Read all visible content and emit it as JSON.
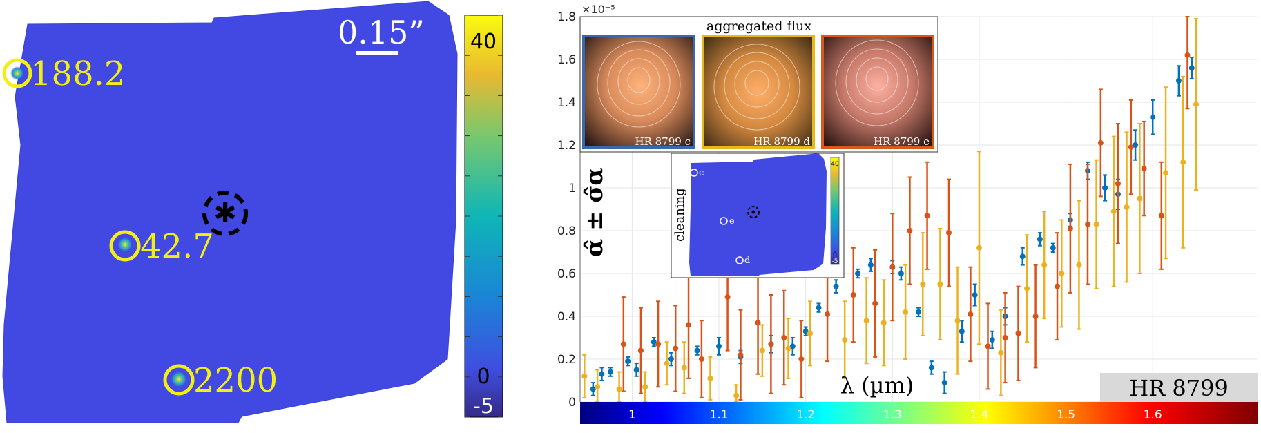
{
  "left_panel": {
    "scale_bar_label": "0.15”",
    "detections": [
      {
        "label": "188.2"
      },
      {
        "label": "42.7"
      },
      {
        "label": "2200"
      }
    ],
    "colorbar": {
      "ticks": [
        {
          "value": 40,
          "label": "40"
        },
        {
          "value": 0,
          "label": "0"
        },
        {
          "value": -5,
          "label": "-5"
        }
      ],
      "min": -5,
      "max": 45
    }
  },
  "chart_data": {
    "type": "scatter",
    "title": "",
    "xlabel": "λ (µm)",
    "ylabel": "α̂ ± σ̂α",
    "y_multiplier": "×10⁻⁵",
    "xlim": [
      0.94,
      1.72
    ],
    "ylim": [
      0,
      1.8
    ],
    "yticks": [
      {
        "value": 0,
        "label": "0"
      },
      {
        "value": 0.2,
        "label": "0.2"
      },
      {
        "value": 0.4,
        "label": "0.4"
      },
      {
        "value": 0.6,
        "label": "0.6"
      },
      {
        "value": 0.8,
        "label": "0.8"
      },
      {
        "value": 1.0,
        "label": "1"
      },
      {
        "value": 1.2,
        "label": "1.2"
      },
      {
        "value": 1.4,
        "label": "1.4"
      },
      {
        "value": 1.6,
        "label": "1.6"
      },
      {
        "value": 1.8,
        "label": "1.8"
      }
    ],
    "wavelength_colorbar_ticks": [
      {
        "value": 1.0,
        "label": "1"
      },
      {
        "value": 1.1,
        "label": "1.1"
      },
      {
        "value": 1.2,
        "label": "1.2"
      },
      {
        "value": 1.3,
        "label": "1.3"
      },
      {
        "value": 1.4,
        "label": "1.4"
      },
      {
        "value": 1.5,
        "label": "1.5"
      },
      {
        "value": 1.6,
        "label": "1.6"
      }
    ],
    "target_label": "HR 8799",
    "grid": true,
    "series": [
      {
        "color": "#0072bd",
        "points": [
          {
            "x": 0.955,
            "y": 0.06,
            "e": 0.03
          },
          {
            "x": 0.965,
            "y": 0.13,
            "e": 0.03
          },
          {
            "x": 0.975,
            "y": 0.14,
            "e": 0.02
          },
          {
            "x": 0.995,
            "y": 0.19,
            "e": 0.02
          },
          {
            "x": 1.005,
            "y": 0.15,
            "e": 0.03
          },
          {
            "x": 1.025,
            "y": 0.28,
            "e": 0.02
          },
          {
            "x": 1.045,
            "y": 0.2,
            "e": 0.03
          },
          {
            "x": 1.075,
            "y": 0.24,
            "e": 0.02
          },
          {
            "x": 1.1,
            "y": 0.26,
            "e": 0.04
          },
          {
            "x": 1.125,
            "y": 0.21,
            "e": 0.03
          },
          {
            "x": 1.16,
            "y": 0.27,
            "e": 0.04
          },
          {
            "x": 1.185,
            "y": 0.26,
            "e": 0.04
          },
          {
            "x": 1.2,
            "y": 0.33,
            "e": 0.02
          },
          {
            "x": 1.215,
            "y": 0.44,
            "e": 0.02
          },
          {
            "x": 1.235,
            "y": 0.54,
            "e": 0.03
          },
          {
            "x": 1.26,
            "y": 0.6,
            "e": 0.02
          },
          {
            "x": 1.275,
            "y": 0.64,
            "e": 0.03
          },
          {
            "x": 1.3,
            "y": 0.63,
            "e": 0.03
          },
          {
            "x": 1.31,
            "y": 0.6,
            "e": 0.03
          },
          {
            "x": 1.33,
            "y": 0.42,
            "e": 0.02
          },
          {
            "x": 1.345,
            "y": 0.16,
            "e": 0.03
          },
          {
            "x": 1.36,
            "y": 0.09,
            "e": 0.05
          },
          {
            "x": 1.38,
            "y": 0.33,
            "e": 0.05
          },
          {
            "x": 1.395,
            "y": 0.5,
            "e": 0.05
          },
          {
            "x": 1.415,
            "y": 0.29,
            "e": 0.04
          },
          {
            "x": 1.43,
            "y": 0.4,
            "e": 0.04
          },
          {
            "x": 1.45,
            "y": 0.68,
            "e": 0.04
          },
          {
            "x": 1.47,
            "y": 0.76,
            "e": 0.03
          },
          {
            "x": 1.485,
            "y": 0.72,
            "e": 0.02
          },
          {
            "x": 1.505,
            "y": 0.85,
            "e": 0.03
          },
          {
            "x": 1.525,
            "y": 1.08,
            "e": 0.04
          },
          {
            "x": 1.545,
            "y": 1.0,
            "e": 0.06
          },
          {
            "x": 1.56,
            "y": 0.97,
            "e": 0.07
          },
          {
            "x": 1.58,
            "y": 1.2,
            "e": 0.07
          },
          {
            "x": 1.6,
            "y": 1.33,
            "e": 0.08
          },
          {
            "x": 1.63,
            "y": 1.5,
            "e": 0.07
          },
          {
            "x": 1.645,
            "y": 1.56,
            "e": 0.05
          }
        ]
      },
      {
        "color": "#d95319",
        "points": [
          {
            "x": 0.99,
            "y": 0.27,
            "e": 0.22
          },
          {
            "x": 1.01,
            "y": 0.24,
            "e": 0.2
          },
          {
            "x": 1.03,
            "y": 0.27,
            "e": 0.2
          },
          {
            "x": 1.05,
            "y": 0.25,
            "e": 0.2
          },
          {
            "x": 1.065,
            "y": 0.36,
            "e": 0.25
          },
          {
            "x": 1.08,
            "y": 0.2,
            "e": 0.18
          },
          {
            "x": 1.11,
            "y": 0.49,
            "e": 0.25
          },
          {
            "x": 1.125,
            "y": 0.22,
            "e": 0.21
          },
          {
            "x": 1.145,
            "y": 0.37,
            "e": 0.24
          },
          {
            "x": 1.16,
            "y": 0.27,
            "e": 0.23
          },
          {
            "x": 1.175,
            "y": 0.3,
            "e": 0.22
          },
          {
            "x": 1.195,
            "y": 0.2,
            "e": 0.18
          },
          {
            "x": 1.225,
            "y": 0.41,
            "e": 0.22
          },
          {
            "x": 1.255,
            "y": 0.5,
            "e": 0.22
          },
          {
            "x": 1.28,
            "y": 0.46,
            "e": 0.25
          },
          {
            "x": 1.3,
            "y": 0.63,
            "e": 0.25
          },
          {
            "x": 1.32,
            "y": 0.8,
            "e": 0.25
          },
          {
            "x": 1.34,
            "y": 0.87,
            "e": 0.25
          },
          {
            "x": 1.365,
            "y": 0.79,
            "e": 0.25
          },
          {
            "x": 1.39,
            "y": 0.41,
            "e": 0.22
          },
          {
            "x": 1.41,
            "y": 0.26,
            "e": 0.2
          },
          {
            "x": 1.43,
            "y": 0.3,
            "e": 0.21
          },
          {
            "x": 1.445,
            "y": 0.32,
            "e": 0.22
          },
          {
            "x": 1.465,
            "y": 0.4,
            "e": 0.24
          },
          {
            "x": 1.49,
            "y": 0.54,
            "e": 0.25
          },
          {
            "x": 1.505,
            "y": 0.81,
            "e": 0.3
          },
          {
            "x": 1.525,
            "y": 0.83,
            "e": 0.28
          },
          {
            "x": 1.54,
            "y": 1.21,
            "e": 0.25
          },
          {
            "x": 1.56,
            "y": 1.02,
            "e": 0.28
          },
          {
            "x": 1.575,
            "y": 1.19,
            "e": 0.22
          },
          {
            "x": 1.59,
            "y": 1.09,
            "e": 0.22
          },
          {
            "x": 1.61,
            "y": 0.87,
            "e": 0.25
          },
          {
            "x": 1.64,
            "y": 1.62,
            "e": 0.25
          }
        ]
      },
      {
        "color": "#edb120",
        "points": [
          {
            "x": 0.945,
            "y": 0.12,
            "e": 0.1
          },
          {
            "x": 0.96,
            "y": 0.07,
            "e": 0.08
          },
          {
            "x": 0.985,
            "y": 0.06,
            "e": 0.08
          },
          {
            "x": 1.015,
            "y": 0.07,
            "e": 0.07
          },
          {
            "x": 1.04,
            "y": 0.18,
            "e": 0.1
          },
          {
            "x": 1.06,
            "y": 0.16,
            "e": 0.12
          },
          {
            "x": 1.09,
            "y": 0.11,
            "e": 0.1
          },
          {
            "x": 1.12,
            "y": 0.03,
            "e": 0.05
          },
          {
            "x": 1.15,
            "y": 0.24,
            "e": 0.12
          },
          {
            "x": 1.18,
            "y": 0.25,
            "e": 0.14
          },
          {
            "x": 1.205,
            "y": 0.32,
            "e": 0.15
          },
          {
            "x": 1.245,
            "y": 0.29,
            "e": 0.18
          },
          {
            "x": 1.27,
            "y": 0.38,
            "e": 0.2
          },
          {
            "x": 1.29,
            "y": 0.37,
            "e": 0.2
          },
          {
            "x": 1.315,
            "y": 0.42,
            "e": 0.22
          },
          {
            "x": 1.335,
            "y": 0.55,
            "e": 0.24
          },
          {
            "x": 1.355,
            "y": 0.55,
            "e": 0.26
          },
          {
            "x": 1.375,
            "y": 0.38,
            "e": 0.25
          },
          {
            "x": 1.4,
            "y": 0.72,
            "e": 0.45
          },
          {
            "x": 1.425,
            "y": 0.23,
            "e": 0.2
          },
          {
            "x": 1.455,
            "y": 0.53,
            "e": 0.25
          },
          {
            "x": 1.475,
            "y": 0.64,
            "e": 0.25
          },
          {
            "x": 1.495,
            "y": 0.6,
            "e": 0.25
          },
          {
            "x": 1.515,
            "y": 0.64,
            "e": 0.3
          },
          {
            "x": 1.535,
            "y": 0.83,
            "e": 0.3
          },
          {
            "x": 1.555,
            "y": 0.89,
            "e": 0.35
          },
          {
            "x": 1.57,
            "y": 0.91,
            "e": 0.35
          },
          {
            "x": 1.585,
            "y": 0.95,
            "e": 0.35
          },
          {
            "x": 1.615,
            "y": 1.07,
            "e": 0.4
          },
          {
            "x": 1.635,
            "y": 1.12,
            "e": 0.4
          },
          {
            "x": 1.65,
            "y": 1.39,
            "e": 0.4
          }
        ]
      }
    ]
  },
  "inset_flux": {
    "title": "aggregated flux",
    "panels": [
      {
        "label": "HR 8799 c",
        "border_color": "#3a68b0"
      },
      {
        "label": "HR 8799 d",
        "border_color": "#e6b81a"
      },
      {
        "label": "HR 8799 e",
        "border_color": "#d9581d"
      }
    ]
  },
  "inset_cleaning": {
    "label": "cleaning",
    "markers": [
      {
        "label": "c"
      },
      {
        "label": "e"
      },
      {
        "label": "d"
      }
    ],
    "colorbar_ticks": [
      {
        "label": "40"
      },
      {
        "label": "0"
      },
      {
        "label": "-5"
      }
    ]
  }
}
